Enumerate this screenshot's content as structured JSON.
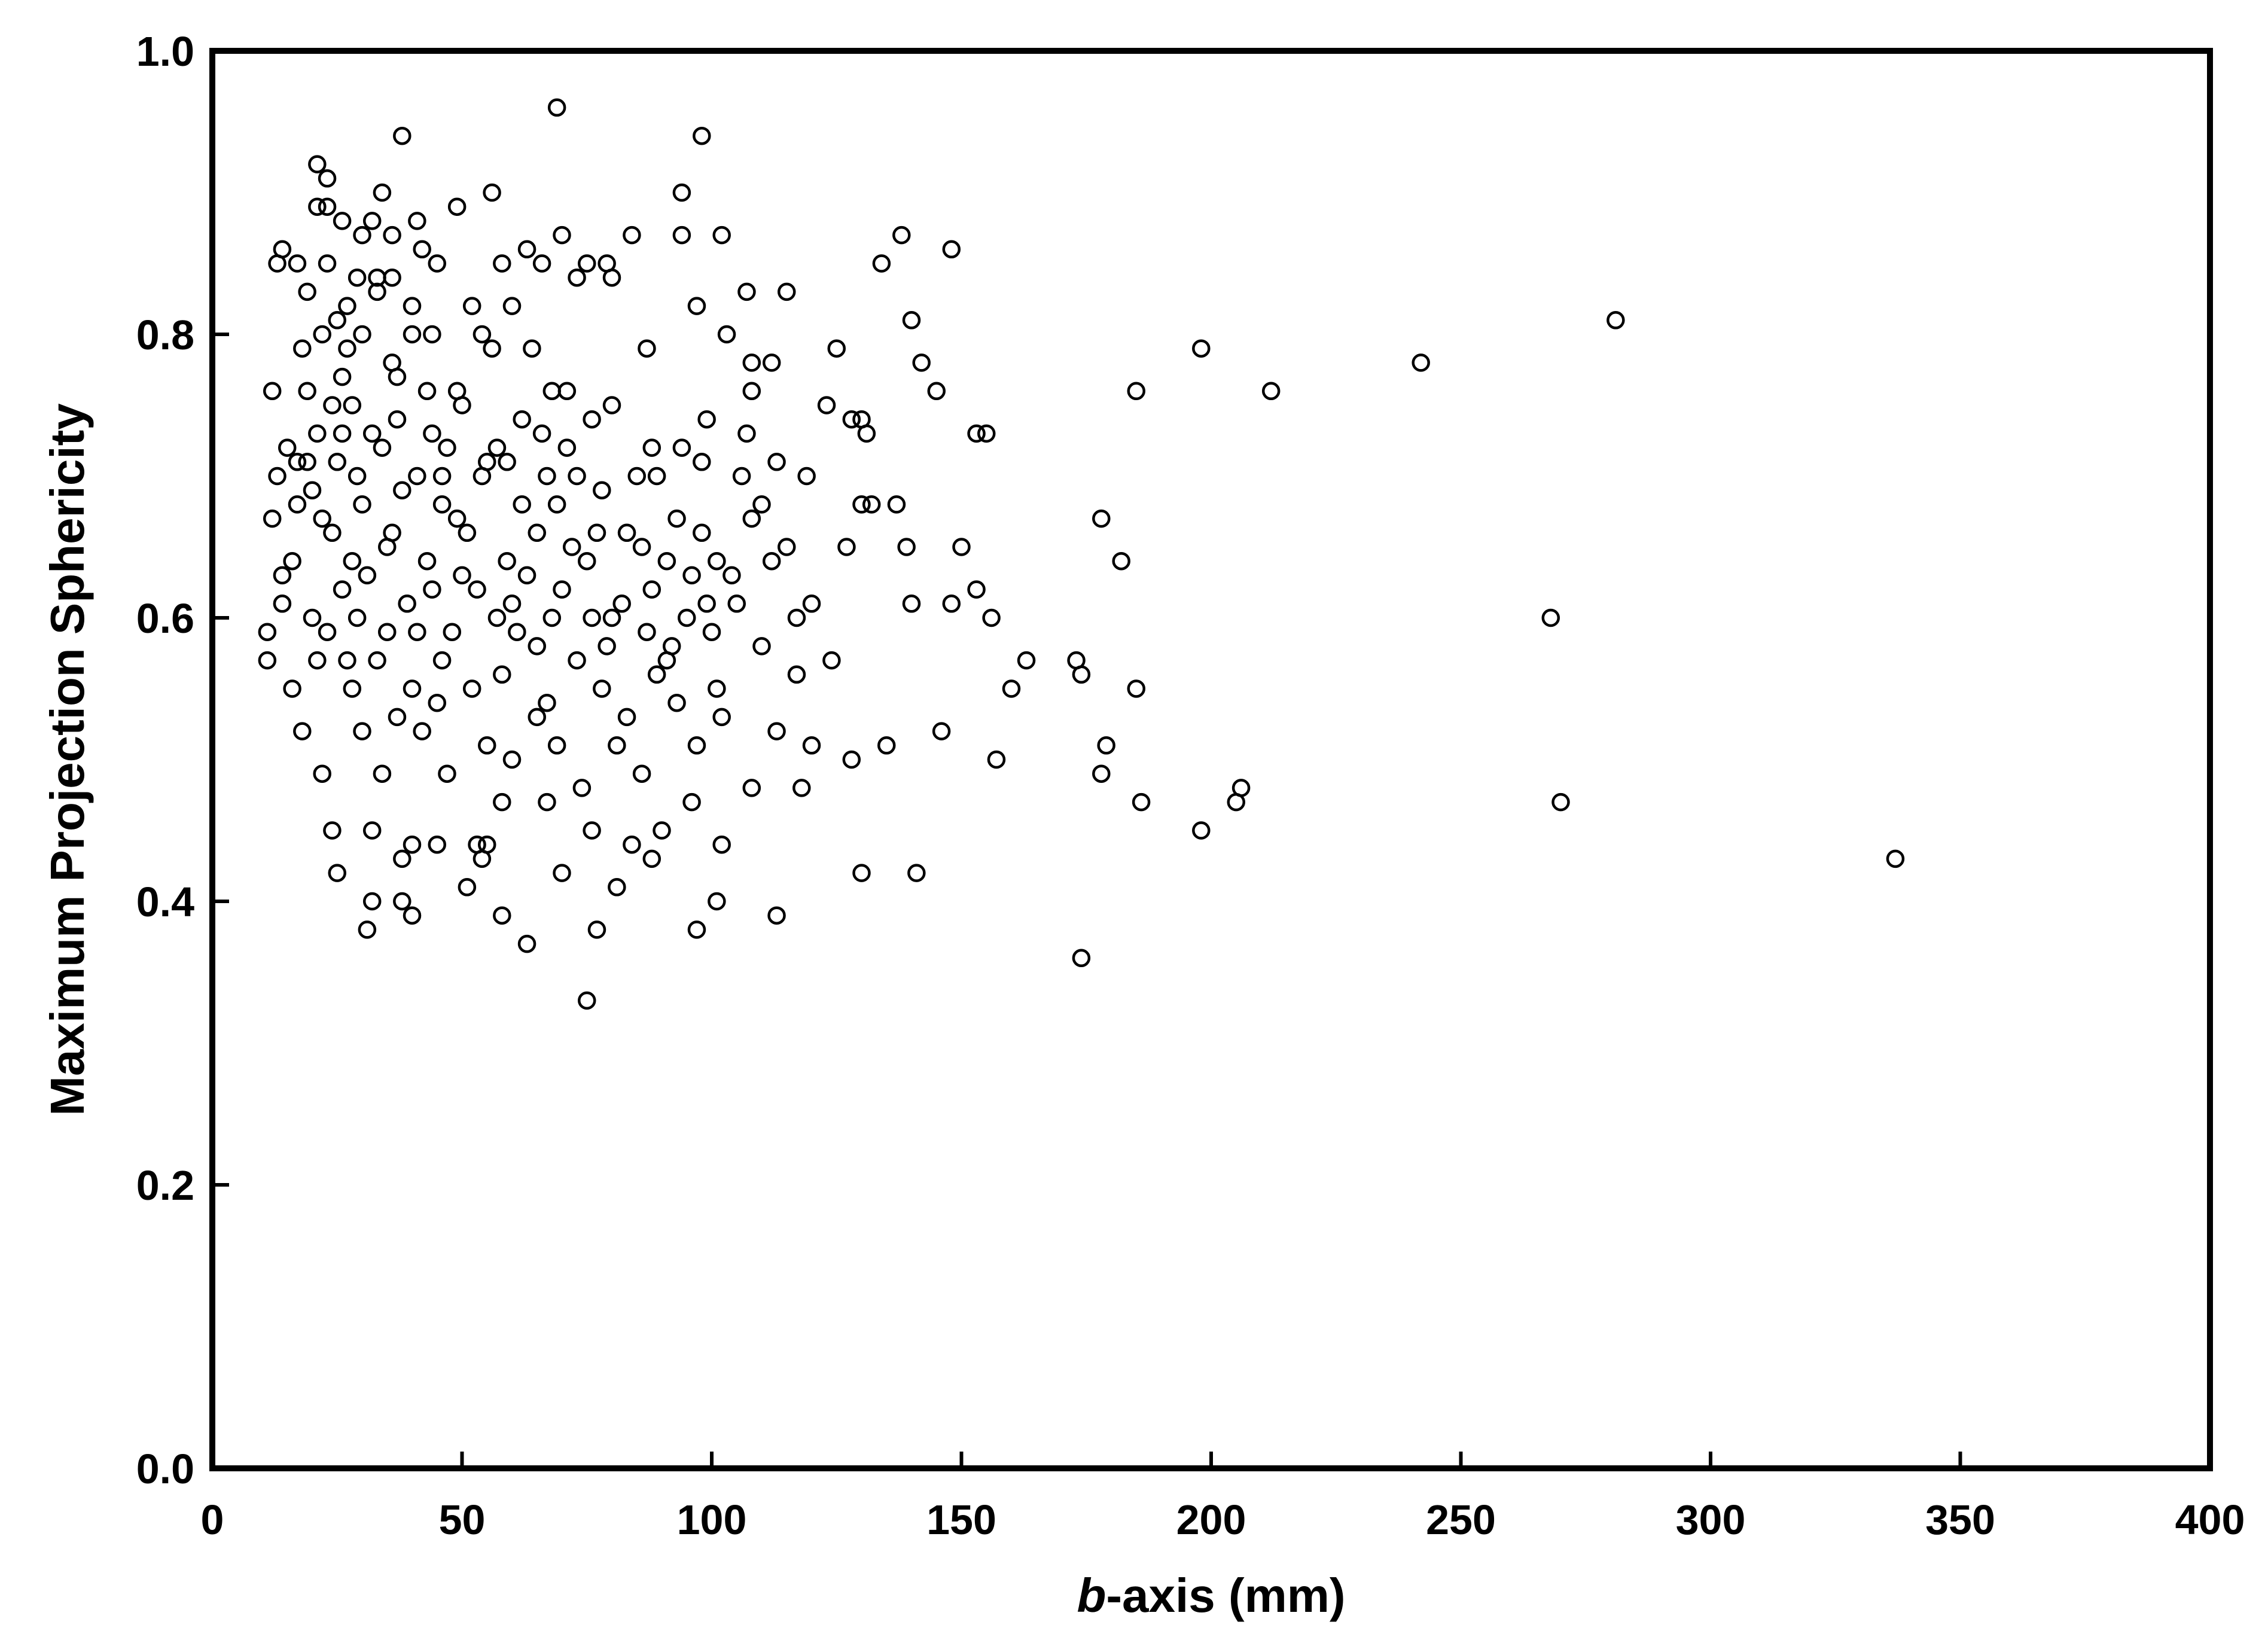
{
  "chart_data": {
    "type": "scatter",
    "title": "",
    "xlabel_italic": "b",
    "xlabel_rest": "-axis (mm)",
    "ylabel": "Maximum Projection Sphericity",
    "xlim": [
      0,
      400
    ],
    "ylim": [
      0.0,
      1.0
    ],
    "x_ticks": [
      0,
      50,
      100,
      150,
      200,
      250,
      300,
      350,
      400
    ],
    "x_tick_labels": [
      "0",
      "50",
      "100",
      "150",
      "200",
      "250",
      "300",
      "350",
      "400"
    ],
    "y_ticks": [
      0.0,
      0.2,
      0.4,
      0.6,
      0.8,
      1.0
    ],
    "y_tick_labels": [
      "0.0",
      "0.2",
      "0.4",
      "0.6",
      "0.8",
      "1.0"
    ],
    "grid": false,
    "legend": "none",
    "marker": "open-circle",
    "colors": {
      "marker": "#000000",
      "axis": "#000000",
      "background": "#ffffff"
    },
    "points": [
      [
        69,
        0.96
      ],
      [
        98,
        0.94
      ],
      [
        38,
        0.94
      ],
      [
        21,
        0.92
      ],
      [
        23,
        0.91
      ],
      [
        34,
        0.9
      ],
      [
        56,
        0.9
      ],
      [
        94,
        0.9
      ],
      [
        23,
        0.89
      ],
      [
        21,
        0.89
      ],
      [
        32,
        0.88
      ],
      [
        49,
        0.89
      ],
      [
        26,
        0.88
      ],
      [
        41,
        0.88
      ],
      [
        138,
        0.87
      ],
      [
        102,
        0.87
      ],
      [
        70,
        0.87
      ],
      [
        84,
        0.87
      ],
      [
        94,
        0.87
      ],
      [
        148,
        0.86
      ],
      [
        36,
        0.87
      ],
      [
        30,
        0.87
      ],
      [
        14,
        0.86
      ],
      [
        13,
        0.85
      ],
      [
        63,
        0.86
      ],
      [
        42,
        0.86
      ],
      [
        75,
        0.85
      ],
      [
        134,
        0.85
      ],
      [
        23,
        0.85
      ],
      [
        17,
        0.85
      ],
      [
        58,
        0.85
      ],
      [
        66,
        0.85
      ],
      [
        79,
        0.85
      ],
      [
        45,
        0.85
      ],
      [
        36,
        0.84
      ],
      [
        29,
        0.84
      ],
      [
        33,
        0.84
      ],
      [
        73,
        0.84
      ],
      [
        80,
        0.84
      ],
      [
        107,
        0.83
      ],
      [
        115,
        0.83
      ],
      [
        19,
        0.83
      ],
      [
        27,
        0.82
      ],
      [
        40,
        0.82
      ],
      [
        52,
        0.82
      ],
      [
        60,
        0.82
      ],
      [
        97,
        0.82
      ],
      [
        140,
        0.81
      ],
      [
        281,
        0.81
      ],
      [
        22,
        0.8
      ],
      [
        30,
        0.8
      ],
      [
        44,
        0.8
      ],
      [
        54,
        0.8
      ],
      [
        87,
        0.79
      ],
      [
        103,
        0.8
      ],
      [
        125,
        0.79
      ],
      [
        198,
        0.79
      ],
      [
        242,
        0.78
      ],
      [
        108,
        0.78
      ],
      [
        112,
        0.78
      ],
      [
        142,
        0.78
      ],
      [
        18,
        0.79
      ],
      [
        36,
        0.78
      ],
      [
        64,
        0.79
      ],
      [
        185,
        0.76
      ],
      [
        212,
        0.76
      ],
      [
        145,
        0.76
      ],
      [
        12,
        0.76
      ],
      [
        26,
        0.77
      ],
      [
        37,
        0.77
      ],
      [
        49,
        0.76
      ],
      [
        68,
        0.76
      ],
      [
        71,
        0.76
      ],
      [
        108,
        0.76
      ],
      [
        123,
        0.75
      ],
      [
        80,
        0.75
      ],
      [
        99,
        0.74
      ],
      [
        130,
        0.74
      ],
      [
        15,
        0.72
      ],
      [
        21,
        0.73
      ],
      [
        32,
        0.73
      ],
      [
        44,
        0.73
      ],
      [
        57,
        0.72
      ],
      [
        71,
        0.72
      ],
      [
        88,
        0.72
      ],
      [
        94,
        0.72
      ],
      [
        107,
        0.73
      ],
      [
        153,
        0.73
      ],
      [
        155,
        0.73
      ],
      [
        131,
        0.73
      ],
      [
        128,
        0.74
      ],
      [
        13,
        0.7
      ],
      [
        17,
        0.71
      ],
      [
        25,
        0.71
      ],
      [
        41,
        0.7
      ],
      [
        55,
        0.71
      ],
      [
        67,
        0.7
      ],
      [
        85,
        0.7
      ],
      [
        98,
        0.71
      ],
      [
        113,
        0.71
      ],
      [
        119,
        0.7
      ],
      [
        110,
        0.68
      ],
      [
        130,
        0.68
      ],
      [
        132,
        0.68
      ],
      [
        137,
        0.68
      ],
      [
        178,
        0.67
      ],
      [
        20,
        0.69
      ],
      [
        30,
        0.68
      ],
      [
        46,
        0.68
      ],
      [
        62,
        0.68
      ],
      [
        78,
        0.69
      ],
      [
        93,
        0.67
      ],
      [
        106,
        0.7
      ],
      [
        12,
        0.67
      ],
      [
        24,
        0.66
      ],
      [
        36,
        0.66
      ],
      [
        51,
        0.66
      ],
      [
        65,
        0.66
      ],
      [
        83,
        0.66
      ],
      [
        98,
        0.66
      ],
      [
        108,
        0.67
      ],
      [
        115,
        0.65
      ],
      [
        127,
        0.65
      ],
      [
        139,
        0.65
      ],
      [
        150,
        0.65
      ],
      [
        182,
        0.64
      ],
      [
        16,
        0.64
      ],
      [
        28,
        0.64
      ],
      [
        43,
        0.64
      ],
      [
        59,
        0.64
      ],
      [
        75,
        0.64
      ],
      [
        91,
        0.64
      ],
      [
        99,
        0.61
      ],
      [
        104,
        0.63
      ],
      [
        120,
        0.61
      ],
      [
        140,
        0.61
      ],
      [
        148,
        0.61
      ],
      [
        153,
        0.62
      ],
      [
        156,
        0.6
      ],
      [
        268,
        0.6
      ],
      [
        14,
        0.61
      ],
      [
        26,
        0.62
      ],
      [
        39,
        0.61
      ],
      [
        53,
        0.62
      ],
      [
        70,
        0.62
      ],
      [
        88,
        0.62
      ],
      [
        11,
        0.59
      ],
      [
        23,
        0.59
      ],
      [
        35,
        0.59
      ],
      [
        48,
        0.59
      ],
      [
        61,
        0.59
      ],
      [
        76,
        0.6
      ],
      [
        92,
        0.58
      ],
      [
        100,
        0.59
      ],
      [
        110,
        0.58
      ],
      [
        117,
        0.6
      ],
      [
        163,
        0.57
      ],
      [
        124,
        0.57
      ],
      [
        174,
        0.56
      ],
      [
        173,
        0.57
      ],
      [
        11,
        0.57
      ],
      [
        21,
        0.57
      ],
      [
        33,
        0.57
      ],
      [
        46,
        0.57
      ],
      [
        58,
        0.56
      ],
      [
        73,
        0.57
      ],
      [
        89,
        0.56
      ],
      [
        101,
        0.55
      ],
      [
        117,
        0.56
      ],
      [
        160,
        0.55
      ],
      [
        185,
        0.55
      ],
      [
        16,
        0.55
      ],
      [
        28,
        0.55
      ],
      [
        40,
        0.55
      ],
      [
        52,
        0.55
      ],
      [
        67,
        0.54
      ],
      [
        83,
        0.53
      ],
      [
        93,
        0.54
      ],
      [
        102,
        0.53
      ],
      [
        113,
        0.52
      ],
      [
        128,
        0.5
      ],
      [
        135,
        0.51
      ],
      [
        146,
        0.52
      ],
      [
        157,
        0.5
      ],
      [
        179,
        0.51
      ],
      [
        18,
        0.52
      ],
      [
        30,
        0.52
      ],
      [
        42,
        0.52
      ],
      [
        55,
        0.51
      ],
      [
        69,
        0.51
      ],
      [
        81,
        0.51
      ],
      [
        97,
        0.51
      ],
      [
        120,
        0.51
      ],
      [
        22,
        0.49
      ],
      [
        34,
        0.49
      ],
      [
        47,
        0.49
      ],
      [
        60,
        0.5
      ],
      [
        74,
        0.48
      ],
      [
        86,
        0.49
      ],
      [
        108,
        0.48
      ],
      [
        118,
        0.48
      ],
      [
        178,
        0.49
      ],
      [
        205,
        0.47
      ],
      [
        206,
        0.48
      ],
      [
        186,
        0.47
      ],
      [
        270,
        0.47
      ],
      [
        67,
        0.47
      ],
      [
        58,
        0.47
      ],
      [
        24,
        0.45
      ],
      [
        32,
        0.45
      ],
      [
        40,
        0.44
      ],
      [
        45,
        0.44
      ],
      [
        53,
        0.44
      ],
      [
        55,
        0.44
      ],
      [
        76,
        0.45
      ],
      [
        84,
        0.44
      ],
      [
        90,
        0.45
      ],
      [
        102,
        0.44
      ],
      [
        198,
        0.45
      ],
      [
        337,
        0.43
      ],
      [
        25,
        0.42
      ],
      [
        38,
        0.43
      ],
      [
        54,
        0.43
      ],
      [
        70,
        0.42
      ],
      [
        81,
        0.41
      ],
      [
        88,
        0.43
      ],
      [
        130,
        0.42
      ],
      [
        141,
        0.42
      ],
      [
        32,
        0.4
      ],
      [
        38,
        0.4
      ],
      [
        40,
        0.39
      ],
      [
        51,
        0.41
      ],
      [
        58,
        0.39
      ],
      [
        77,
        0.38
      ],
      [
        97,
        0.38
      ],
      [
        101,
        0.4
      ],
      [
        113,
        0.39
      ],
      [
        31,
        0.38
      ],
      [
        63,
        0.37
      ],
      [
        174,
        0.36
      ],
      [
        75,
        0.33
      ],
      [
        27,
        0.79
      ],
      [
        19,
        0.76
      ],
      [
        24,
        0.75
      ],
      [
        34,
        0.72
      ],
      [
        29,
        0.7
      ],
      [
        38,
        0.69
      ],
      [
        47,
        0.72
      ],
      [
        50,
        0.75
      ],
      [
        62,
        0.74
      ],
      [
        73,
        0.7
      ],
      [
        86,
        0.65
      ],
      [
        44,
        0.62
      ],
      [
        31,
        0.63
      ],
      [
        20,
        0.6
      ],
      [
        57,
        0.6
      ],
      [
        65,
        0.58
      ],
      [
        79,
        0.58
      ],
      [
        95,
        0.6
      ],
      [
        40,
        0.8
      ],
      [
        26,
        0.73
      ],
      [
        17,
        0.68
      ],
      [
        35,
        0.65
      ],
      [
        49,
        0.67
      ],
      [
        54,
        0.7
      ],
      [
        63,
        0.63
      ],
      [
        72,
        0.65
      ],
      [
        82,
        0.61
      ],
      [
        91,
        0.57
      ],
      [
        105,
        0.61
      ],
      [
        27,
        0.57
      ],
      [
        37,
        0.53
      ],
      [
        45,
        0.54
      ],
      [
        65,
        0.53
      ],
      [
        78,
        0.55
      ],
      [
        96,
        0.47
      ],
      [
        25,
        0.81
      ],
      [
        33,
        0.83
      ],
      [
        43,
        0.76
      ],
      [
        56,
        0.79
      ],
      [
        66,
        0.73
      ],
      [
        76,
        0.74
      ],
      [
        89,
        0.7
      ],
      [
        101,
        0.64
      ],
      [
        112,
        0.64
      ],
      [
        22,
        0.67
      ],
      [
        29,
        0.6
      ],
      [
        41,
        0.59
      ],
      [
        50,
        0.63
      ],
      [
        60,
        0.61
      ],
      [
        68,
        0.6
      ],
      [
        80,
        0.6
      ],
      [
        87,
        0.59
      ],
      [
        14,
        0.63
      ],
      [
        19,
        0.71
      ],
      [
        28,
        0.75
      ],
      [
        37,
        0.74
      ],
      [
        46,
        0.7
      ],
      [
        59,
        0.71
      ],
      [
        69,
        0.68
      ],
      [
        77,
        0.66
      ],
      [
        96,
        0.63
      ]
    ]
  }
}
